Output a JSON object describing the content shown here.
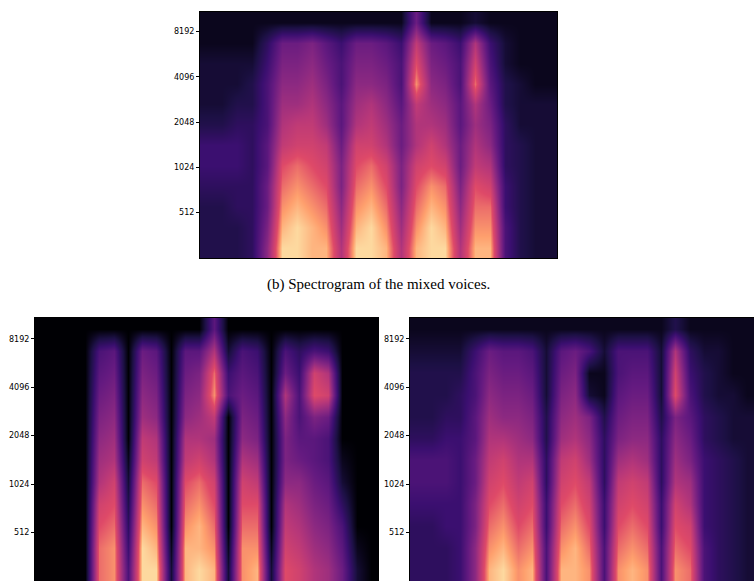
{
  "chart_data": [
    {
      "type": "heatmap",
      "title": "(b) Spectrogram of the mixed voices.",
      "log": "y",
      "tick_labels": "y",
      "ylim": [
        256,
        11025
      ],
      "yticks": [
        512,
        1024,
        2048,
        4096,
        8192
      ],
      "zlim": [
        0,
        1
      ],
      "y_edges": [
        256,
        350,
        480,
        660,
        900,
        1230,
        1690,
        2300,
        3150,
        4300,
        5900,
        8050,
        11025
      ],
      "cells": [
        [
          0.15,
          0.15,
          0.15,
          0.2,
          0.5,
          0.95,
          0.95,
          0.9,
          0.9,
          0.6,
          0.95,
          0.95,
          0.9,
          0.6,
          0.9,
          0.95,
          0.95,
          0.6,
          0.9,
          0.9,
          0.3,
          0.15,
          0.1,
          0.1
        ],
        [
          0.15,
          0.15,
          0.15,
          0.2,
          0.45,
          0.9,
          0.95,
          0.9,
          0.85,
          0.55,
          0.9,
          0.95,
          0.85,
          0.55,
          0.85,
          0.95,
          0.9,
          0.55,
          0.85,
          0.85,
          0.3,
          0.15,
          0.1,
          0.1
        ],
        [
          0.15,
          0.15,
          0.2,
          0.2,
          0.4,
          0.85,
          0.9,
          0.85,
          0.8,
          0.5,
          0.85,
          0.9,
          0.8,
          0.5,
          0.8,
          0.9,
          0.85,
          0.5,
          0.8,
          0.8,
          0.25,
          0.15,
          0.1,
          0.1
        ],
        [
          0.2,
          0.2,
          0.2,
          0.2,
          0.4,
          0.8,
          0.85,
          0.8,
          0.75,
          0.45,
          0.8,
          0.85,
          0.75,
          0.45,
          0.75,
          0.85,
          0.8,
          0.45,
          0.75,
          0.7,
          0.25,
          0.15,
          0.1,
          0.1
        ],
        [
          0.25,
          0.25,
          0.25,
          0.2,
          0.35,
          0.75,
          0.8,
          0.75,
          0.7,
          0.45,
          0.75,
          0.8,
          0.7,
          0.45,
          0.7,
          0.75,
          0.7,
          0.4,
          0.65,
          0.6,
          0.2,
          0.15,
          0.1,
          0.1
        ],
        [
          0.25,
          0.25,
          0.25,
          0.2,
          0.35,
          0.65,
          0.7,
          0.7,
          0.65,
          0.4,
          0.7,
          0.7,
          0.6,
          0.4,
          0.6,
          0.7,
          0.6,
          0.4,
          0.6,
          0.5,
          0.2,
          0.15,
          0.1,
          0.1
        ],
        [
          0.15,
          0.15,
          0.2,
          0.2,
          0.3,
          0.6,
          0.65,
          0.65,
          0.55,
          0.35,
          0.6,
          0.65,
          0.55,
          0.4,
          0.6,
          0.6,
          0.55,
          0.35,
          0.55,
          0.45,
          0.2,
          0.1,
          0.1,
          0.1
        ],
        [
          0.1,
          0.1,
          0.15,
          0.15,
          0.3,
          0.55,
          0.55,
          0.6,
          0.5,
          0.35,
          0.55,
          0.6,
          0.5,
          0.35,
          0.65,
          0.55,
          0.5,
          0.35,
          0.6,
          0.4,
          0.15,
          0.1,
          0.1,
          0.1
        ],
        [
          0.1,
          0.1,
          0.1,
          0.15,
          0.3,
          0.5,
          0.5,
          0.55,
          0.45,
          0.3,
          0.5,
          0.5,
          0.45,
          0.3,
          0.85,
          0.5,
          0.45,
          0.3,
          0.8,
          0.35,
          0.15,
          0.1,
          0.05,
          0.05
        ],
        [
          0.1,
          0.1,
          0.1,
          0.1,
          0.25,
          0.45,
          0.45,
          0.5,
          0.4,
          0.3,
          0.45,
          0.45,
          0.4,
          0.3,
          0.75,
          0.45,
          0.4,
          0.3,
          0.7,
          0.3,
          0.1,
          0.05,
          0.05,
          0.05
        ],
        [
          0.05,
          0.05,
          0.05,
          0.05,
          0.2,
          0.4,
          0.4,
          0.45,
          0.35,
          0.25,
          0.4,
          0.4,
          0.35,
          0.25,
          0.65,
          0.4,
          0.35,
          0.25,
          0.6,
          0.25,
          0.1,
          0.05,
          0.05,
          0.05
        ],
        [
          0.05,
          0.05,
          0.05,
          0.05,
          0.05,
          0.05,
          0.05,
          0.05,
          0.05,
          0.05,
          0.05,
          0.05,
          0.05,
          0.05,
          0.4,
          0.05,
          0.05,
          0.05,
          0.1,
          0.05,
          0.05,
          0.05,
          0.05,
          0.05
        ]
      ]
    },
    {
      "type": "heatmap",
      "log": "y",
      "tick_labels": "y",
      "ylim": [
        256,
        11025
      ],
      "yticks": [
        512,
        1024,
        2048,
        4096,
        8192
      ],
      "zlim": [
        0,
        1
      ],
      "y_edges": [
        256,
        350,
        480,
        660,
        900,
        1230,
        1690,
        2300,
        3150,
        4300,
        5900,
        8050,
        11025
      ],
      "cells": [
        [
          0,
          0,
          0,
          0,
          0.8,
          0.85,
          0.3,
          0.95,
          0.95,
          0.1,
          0.9,
          0.95,
          0.9,
          0.1,
          0.85,
          0.9,
          0.1,
          0.75,
          0.7,
          0.6,
          0.55,
          0.4,
          0.1,
          0
        ],
        [
          0,
          0,
          0,
          0,
          0.8,
          0.85,
          0.25,
          0.95,
          0.9,
          0.05,
          0.9,
          0.9,
          0.85,
          0.05,
          0.85,
          0.85,
          0.05,
          0.7,
          0.65,
          0.55,
          0.5,
          0.35,
          0.05,
          0
        ],
        [
          0,
          0,
          0,
          0,
          0.75,
          0.8,
          0.2,
          0.9,
          0.85,
          0,
          0.85,
          0.9,
          0.8,
          0,
          0.8,
          0.8,
          0,
          0.65,
          0.6,
          0.5,
          0.45,
          0.3,
          0,
          0
        ],
        [
          0,
          0,
          0,
          0,
          0.7,
          0.75,
          0.15,
          0.85,
          0.8,
          0,
          0.8,
          0.85,
          0.75,
          0,
          0.75,
          0.75,
          0,
          0.6,
          0.55,
          0.45,
          0.4,
          0.2,
          0,
          0
        ],
        [
          0,
          0,
          0,
          0,
          0.6,
          0.7,
          0.1,
          0.8,
          0.75,
          0,
          0.75,
          0.8,
          0.7,
          0,
          0.7,
          0.65,
          0,
          0.5,
          0.5,
          0.4,
          0.35,
          0.1,
          0,
          0
        ],
        [
          0,
          0,
          0,
          0,
          0.55,
          0.6,
          0.05,
          0.7,
          0.65,
          0,
          0.65,
          0.7,
          0.6,
          0,
          0.6,
          0.55,
          0,
          0.45,
          0.4,
          0.35,
          0.3,
          0.05,
          0,
          0
        ],
        [
          0,
          0,
          0,
          0,
          0.5,
          0.55,
          0,
          0.65,
          0.6,
          0,
          0.6,
          0.6,
          0.55,
          0,
          0.5,
          0.45,
          0,
          0.45,
          0.35,
          0.35,
          0.3,
          0,
          0,
          0
        ],
        [
          0,
          0,
          0,
          0,
          0.45,
          0.5,
          0,
          0.55,
          0.5,
          0,
          0.5,
          0.55,
          0.65,
          0,
          0.45,
          0.4,
          0,
          0.5,
          0.3,
          0.45,
          0.4,
          0,
          0,
          0
        ],
        [
          0,
          0,
          0,
          0,
          0.4,
          0.45,
          0,
          0.5,
          0.45,
          0,
          0.45,
          0.5,
          0.85,
          0.3,
          0.4,
          0.35,
          0,
          0.6,
          0.3,
          0.75,
          0.7,
          0,
          0,
          0
        ],
        [
          0,
          0,
          0,
          0,
          0.35,
          0.4,
          0,
          0.45,
          0.4,
          0,
          0.4,
          0.45,
          0.8,
          0.25,
          0.35,
          0.3,
          0,
          0.4,
          0.25,
          0.7,
          0.6,
          0,
          0,
          0
        ],
        [
          0,
          0,
          0,
          0,
          0.3,
          0.35,
          0,
          0.4,
          0.35,
          0,
          0.35,
          0.35,
          0.6,
          0.1,
          0.3,
          0.25,
          0,
          0.3,
          0.2,
          0.3,
          0.25,
          0,
          0,
          0
        ],
        [
          0,
          0,
          0,
          0,
          0,
          0,
          0,
          0,
          0,
          0,
          0,
          0,
          0.35,
          0,
          0,
          0,
          0,
          0,
          0,
          0,
          0,
          0,
          0,
          0
        ]
      ]
    },
    {
      "type": "heatmap",
      "log": "y",
      "tick_labels": "y",
      "ylim": [
        256,
        11025
      ],
      "yticks": [
        512,
        1024,
        2048,
        4096,
        8192
      ],
      "zlim": [
        0,
        1
      ],
      "y_edges": [
        256,
        350,
        480,
        660,
        900,
        1230,
        1690,
        2300,
        3150,
        4300,
        5900,
        8050,
        11025
      ],
      "cells": [
        [
          0.2,
          0.2,
          0.2,
          0.25,
          0.5,
          0.9,
          0.95,
          0.85,
          0.9,
          0.3,
          0.9,
          0.9,
          0.85,
          0.3,
          0.85,
          0.9,
          0.85,
          0.3,
          0.85,
          0.8,
          0.3,
          0.2,
          0.15,
          0.1
        ],
        [
          0.2,
          0.2,
          0.2,
          0.25,
          0.5,
          0.85,
          0.9,
          0.8,
          0.85,
          0.3,
          0.85,
          0.9,
          0.8,
          0.3,
          0.8,
          0.85,
          0.8,
          0.3,
          0.8,
          0.75,
          0.3,
          0.2,
          0.15,
          0.1
        ],
        [
          0.2,
          0.2,
          0.25,
          0.25,
          0.45,
          0.8,
          0.85,
          0.75,
          0.8,
          0.25,
          0.8,
          0.85,
          0.75,
          0.25,
          0.75,
          0.8,
          0.75,
          0.25,
          0.75,
          0.7,
          0.25,
          0.2,
          0.15,
          0.1
        ],
        [
          0.25,
          0.25,
          0.25,
          0.25,
          0.45,
          0.75,
          0.8,
          0.7,
          0.75,
          0.25,
          0.75,
          0.8,
          0.7,
          0.25,
          0.7,
          0.75,
          0.7,
          0.25,
          0.7,
          0.6,
          0.25,
          0.2,
          0.15,
          0.1
        ],
        [
          0.3,
          0.3,
          0.3,
          0.25,
          0.4,
          0.7,
          0.75,
          0.65,
          0.7,
          0.2,
          0.7,
          0.75,
          0.65,
          0.2,
          0.65,
          0.7,
          0.65,
          0.2,
          0.6,
          0.55,
          0.25,
          0.2,
          0.15,
          0.1
        ],
        [
          0.3,
          0.3,
          0.3,
          0.25,
          0.4,
          0.65,
          0.7,
          0.6,
          0.6,
          0.2,
          0.65,
          0.7,
          0.55,
          0.2,
          0.55,
          0.6,
          0.55,
          0.2,
          0.55,
          0.45,
          0.25,
          0.2,
          0.15,
          0.1
        ],
        [
          0.2,
          0.2,
          0.25,
          0.25,
          0.35,
          0.6,
          0.6,
          0.55,
          0.5,
          0.15,
          0.55,
          0.6,
          0.5,
          0.2,
          0.45,
          0.5,
          0.5,
          0.2,
          0.5,
          0.4,
          0.2,
          0.15,
          0.1,
          0.1
        ],
        [
          0.15,
          0.15,
          0.2,
          0.2,
          0.35,
          0.55,
          0.5,
          0.5,
          0.45,
          0.15,
          0.5,
          0.55,
          0.45,
          0.15,
          0.4,
          0.45,
          0.45,
          0.15,
          0.45,
          0.35,
          0.2,
          0.15,
          0.1,
          0.1
        ],
        [
          0.15,
          0.15,
          0.15,
          0.2,
          0.3,
          0.5,
          0.45,
          0.45,
          0.4,
          0.1,
          0.45,
          0.5,
          0.1,
          0.05,
          0.35,
          0.4,
          0.4,
          0.1,
          0.75,
          0.3,
          0.15,
          0.1,
          0.1,
          0.05
        ],
        [
          0.15,
          0.15,
          0.15,
          0.15,
          0.3,
          0.45,
          0.4,
          0.4,
          0.35,
          0.1,
          0.4,
          0.45,
          0.05,
          0.05,
          0.3,
          0.35,
          0.35,
          0.1,
          0.7,
          0.25,
          0.15,
          0.1,
          0.05,
          0.05
        ],
        [
          0.1,
          0.1,
          0.1,
          0.1,
          0.25,
          0.4,
          0.35,
          0.35,
          0.3,
          0.1,
          0.35,
          0.4,
          0.3,
          0.1,
          0.3,
          0.3,
          0.3,
          0.1,
          0.6,
          0.2,
          0.1,
          0.1,
          0.05,
          0.05
        ],
        [
          0.05,
          0.05,
          0.05,
          0.05,
          0.05,
          0.05,
          0.05,
          0.05,
          0.05,
          0.05,
          0.05,
          0.05,
          0.05,
          0.05,
          0.05,
          0.05,
          0.05,
          0.05,
          0.15,
          0.05,
          0.05,
          0.05,
          0.05,
          0.05
        ]
      ]
    }
  ]
}
